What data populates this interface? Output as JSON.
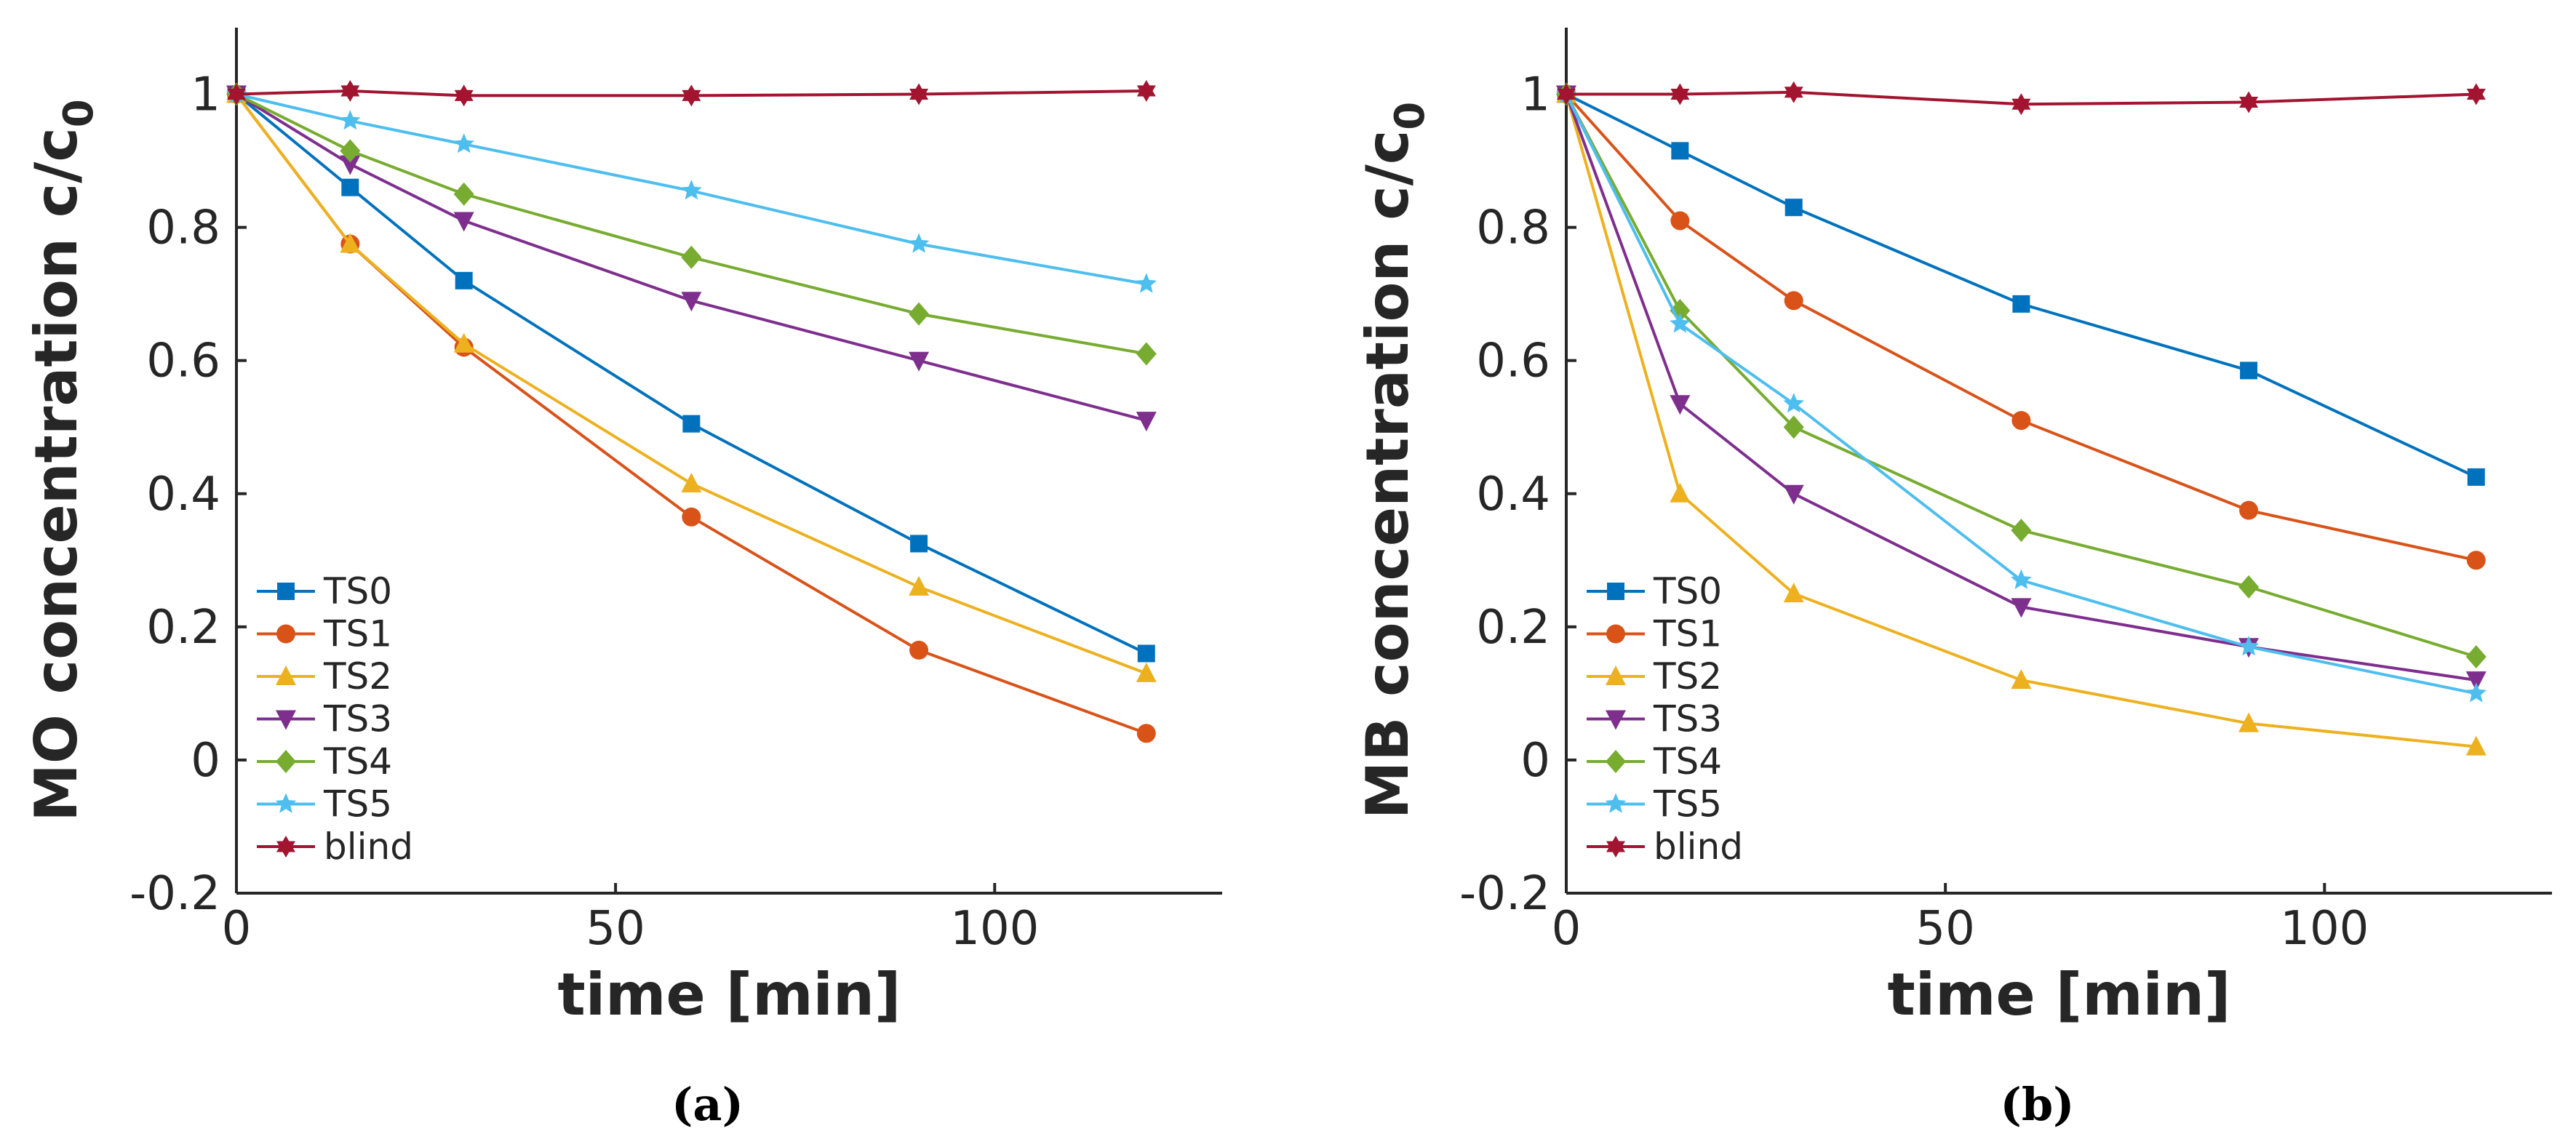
{
  "chart_data": [
    {
      "type": "line",
      "caption": "(a)",
      "xlabel": "time [min]",
      "ylabel": "MO concentration c/c",
      "ylabel_subscript": "0",
      "xlim": [
        0,
        130
      ],
      "ylim": [
        -0.2,
        1.1
      ],
      "xticks": [
        0,
        50,
        100
      ],
      "xtick_labels": [
        "0",
        "50",
        "100"
      ],
      "yticks": [
        -0.2,
        0,
        0.2,
        0.4,
        0.6,
        0.8,
        1
      ],
      "ytick_labels": [
        "-0.2",
        "0",
        "0.2",
        "0.4",
        "0.6",
        "0.8",
        "1"
      ],
      "legend_position": "lower-left",
      "x": [
        0,
        15,
        30,
        60,
        90,
        120
      ],
      "series": [
        {
          "name": "TS0",
          "color": "#0072BD",
          "marker": "square",
          "values": [
            1.0,
            0.86,
            0.72,
            0.505,
            0.325,
            0.16
          ]
        },
        {
          "name": "TS1",
          "color": "#D95319",
          "marker": "circle",
          "values": [
            1.0,
            0.775,
            0.62,
            0.365,
            0.165,
            0.04
          ]
        },
        {
          "name": "TS2",
          "color": "#EDB120",
          "marker": "triangle-up",
          "values": [
            1.0,
            0.775,
            0.625,
            0.415,
            0.26,
            0.13
          ]
        },
        {
          "name": "TS3",
          "color": "#7E2F8E",
          "marker": "triangle-down",
          "values": [
            1.0,
            0.895,
            0.81,
            0.69,
            0.6,
            0.51
          ]
        },
        {
          "name": "TS4",
          "color": "#77AC30",
          "marker": "diamond",
          "values": [
            1.0,
            0.915,
            0.85,
            0.755,
            0.67,
            0.61
          ]
        },
        {
          "name": "TS5",
          "color": "#4DBEEE",
          "marker": "star",
          "values": [
            1.0,
            0.96,
            0.925,
            0.855,
            0.775,
            0.715
          ]
        },
        {
          "name": "blind",
          "color": "#A2142F",
          "marker": "hexagram",
          "values": [
            1.0,
            1.005,
            0.998,
            0.998,
            1.0,
            1.005
          ]
        }
      ]
    },
    {
      "type": "line",
      "caption": "(b)",
      "xlabel": "time [min]",
      "ylabel": "MB concentration c/c",
      "ylabel_subscript": "0",
      "xlim": [
        0,
        130
      ],
      "ylim": [
        -0.2,
        1.1
      ],
      "xticks": [
        0,
        50,
        100
      ],
      "xtick_labels": [
        "0",
        "50",
        "100"
      ],
      "yticks": [
        -0.2,
        0,
        0.2,
        0.4,
        0.6,
        0.8,
        1
      ],
      "ytick_labels": [
        "-0.2",
        "0",
        "0.2",
        "0.4",
        "0.6",
        "0.8",
        "1"
      ],
      "legend_position": "lower-left",
      "x": [
        0,
        15,
        30,
        60,
        90,
        120
      ],
      "series": [
        {
          "name": "TS0",
          "color": "#0072BD",
          "marker": "square",
          "values": [
            1.0,
            0.915,
            0.83,
            0.685,
            0.585,
            0.425
          ]
        },
        {
          "name": "TS1",
          "color": "#D95319",
          "marker": "circle",
          "values": [
            1.0,
            0.81,
            0.69,
            0.51,
            0.375,
            0.3
          ]
        },
        {
          "name": "TS2",
          "color": "#EDB120",
          "marker": "triangle-up",
          "values": [
            1.0,
            0.4,
            0.25,
            0.12,
            0.055,
            0.02
          ]
        },
        {
          "name": "TS3",
          "color": "#7E2F8E",
          "marker": "triangle-down",
          "values": [
            1.0,
            0.535,
            0.4,
            0.23,
            0.17,
            0.12
          ]
        },
        {
          "name": "TS4",
          "color": "#77AC30",
          "marker": "diamond",
          "values": [
            1.0,
            0.675,
            0.5,
            0.345,
            0.26,
            0.155
          ]
        },
        {
          "name": "TS5",
          "color": "#4DBEEE",
          "marker": "star",
          "values": [
            1.0,
            0.655,
            0.535,
            0.27,
            0.17,
            0.1
          ]
        },
        {
          "name": "blind",
          "color": "#A2142F",
          "marker": "hexagram",
          "values": [
            1.0,
            1.0,
            1.003,
            0.985,
            0.988,
            1.0
          ]
        }
      ]
    }
  ]
}
